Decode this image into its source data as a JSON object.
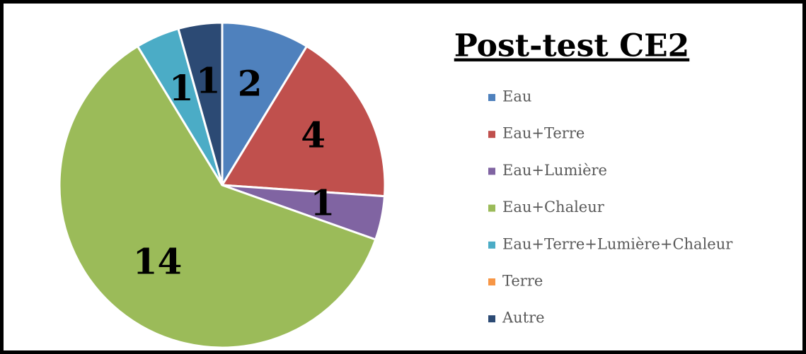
{
  "chart_data": {
    "type": "pie",
    "title": "Post-test CE2",
    "categories": [
      "Eau",
      "Eau+Terre",
      "Eau+Lumière",
      "Eau+Chaleur",
      "Eau+Terre+Lumière+Chaleur",
      "Terre",
      "Autre"
    ],
    "values": [
      2,
      4,
      1,
      14,
      1,
      0,
      1
    ],
    "colors": [
      "#4f81bd",
      "#c0504d",
      "#8064a2",
      "#9bbb59",
      "#4bacc6",
      "#f79646",
      "#2c4a74"
    ],
    "legend": "right"
  }
}
